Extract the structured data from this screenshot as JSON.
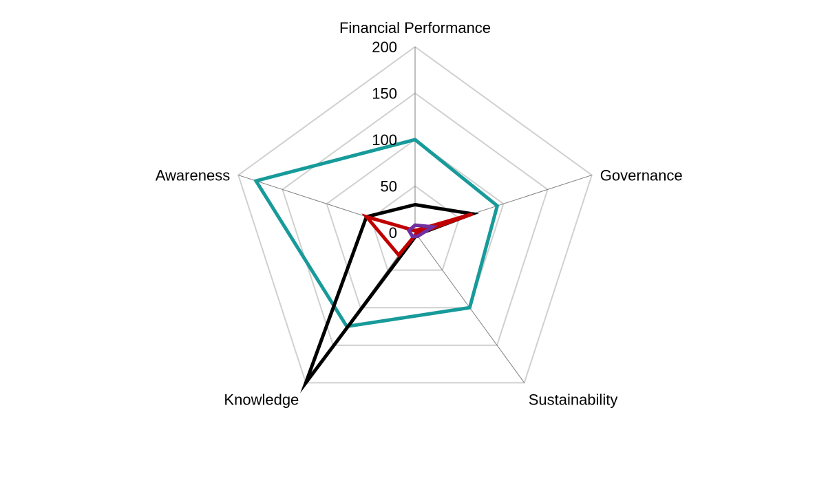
{
  "chart_data": {
    "type": "radar",
    "axes": [
      "Financial Performance",
      "Governance",
      "Sustainability",
      "Knowledge",
      "Awareness"
    ],
    "rlim": [
      0,
      200
    ],
    "ticks": [
      0,
      50,
      100,
      150,
      200
    ],
    "tick_labels": [
      "0",
      "50",
      "100",
      "150",
      "200"
    ],
    "grid": true,
    "series": [
      {
        "color": "#179a9a",
        "values": [
          100,
          93,
          100,
          125,
          180
        ]
      },
      {
        "color": "#000000",
        "values": [
          30,
          65,
          3,
          200,
          55
        ]
      },
      {
        "color": "#c00000",
        "values": [
          2,
          65,
          2,
          30,
          55
        ]
      },
      {
        "color": "#7030a0",
        "values": [
          8,
          20,
          5,
          5,
          7
        ]
      }
    ]
  }
}
